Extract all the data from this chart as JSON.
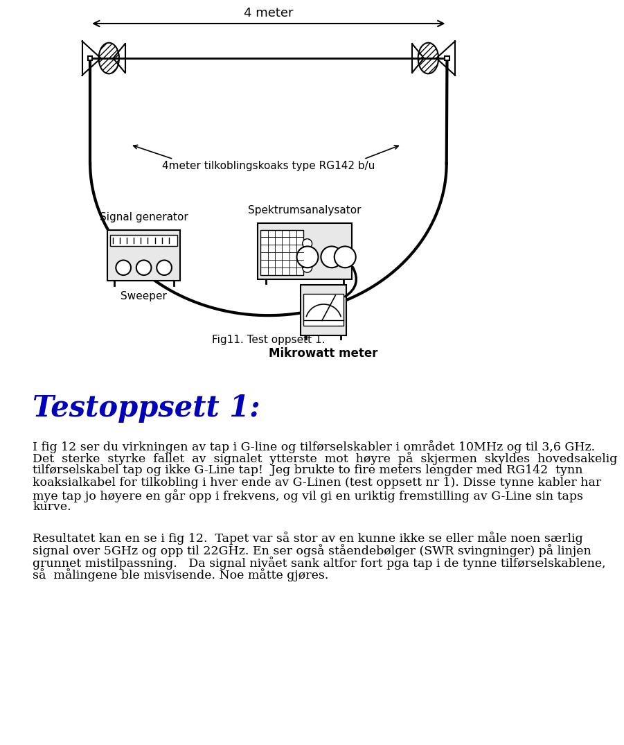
{
  "bg_color": "#ffffff",
  "diagram_label_4meter": "4 meter",
  "diagram_label_koaks": "4meter tilkoblingskoaks type RG142 b/u",
  "diagram_label_sig_gen": "Signal generator",
  "diagram_label_spektrum": "Spektrumsanalysator",
  "diagram_label_sweeper": "Sweeper",
  "diagram_label_mikrowatt": "Mikrowatt meter",
  "diagram_label_fig": "Fig11. Test oppsett 1.",
  "section_title": "Testoppsett 1:",
  "para1_lines": [
    "I fig 12 ser du virkningen av tap i G-line og tilførselskabler i området 10MHz og til 3,6 GHz.",
    "Det  sterke  styrke  fallet  av  signalet  ytterste  mot  høyre  på  skjermen  skyldes  hovedsakelig",
    "tilførselskabel tap og ikke G-Line tap!  Jeg brukte to fire meters lengder med RG142  tynn",
    "koaksialkabel for tilkobling i hver ende av G-Linen (test oppsett nr 1). Disse tynne kabler har",
    "mye tap jo høyere en går opp i frekvens, og vil gi en uriktig fremstilling av G-Line sin taps",
    "kurve."
  ],
  "para2_lines": [
    "Resultatet kan en se i fig 12.  Tapet var så stor av en kunne ikke se eller måle noen særlig",
    "signal over 5GHz og opp til 22GHz. En ser også ståendebølger (SWR svingninger) på linjen",
    "grunnet mistilpassning.   Da signal nivået sank altfor fort pga tap i de tynne tilførselskablene,",
    "så  målingene ble misvisende. Noe måtte gjøres."
  ]
}
